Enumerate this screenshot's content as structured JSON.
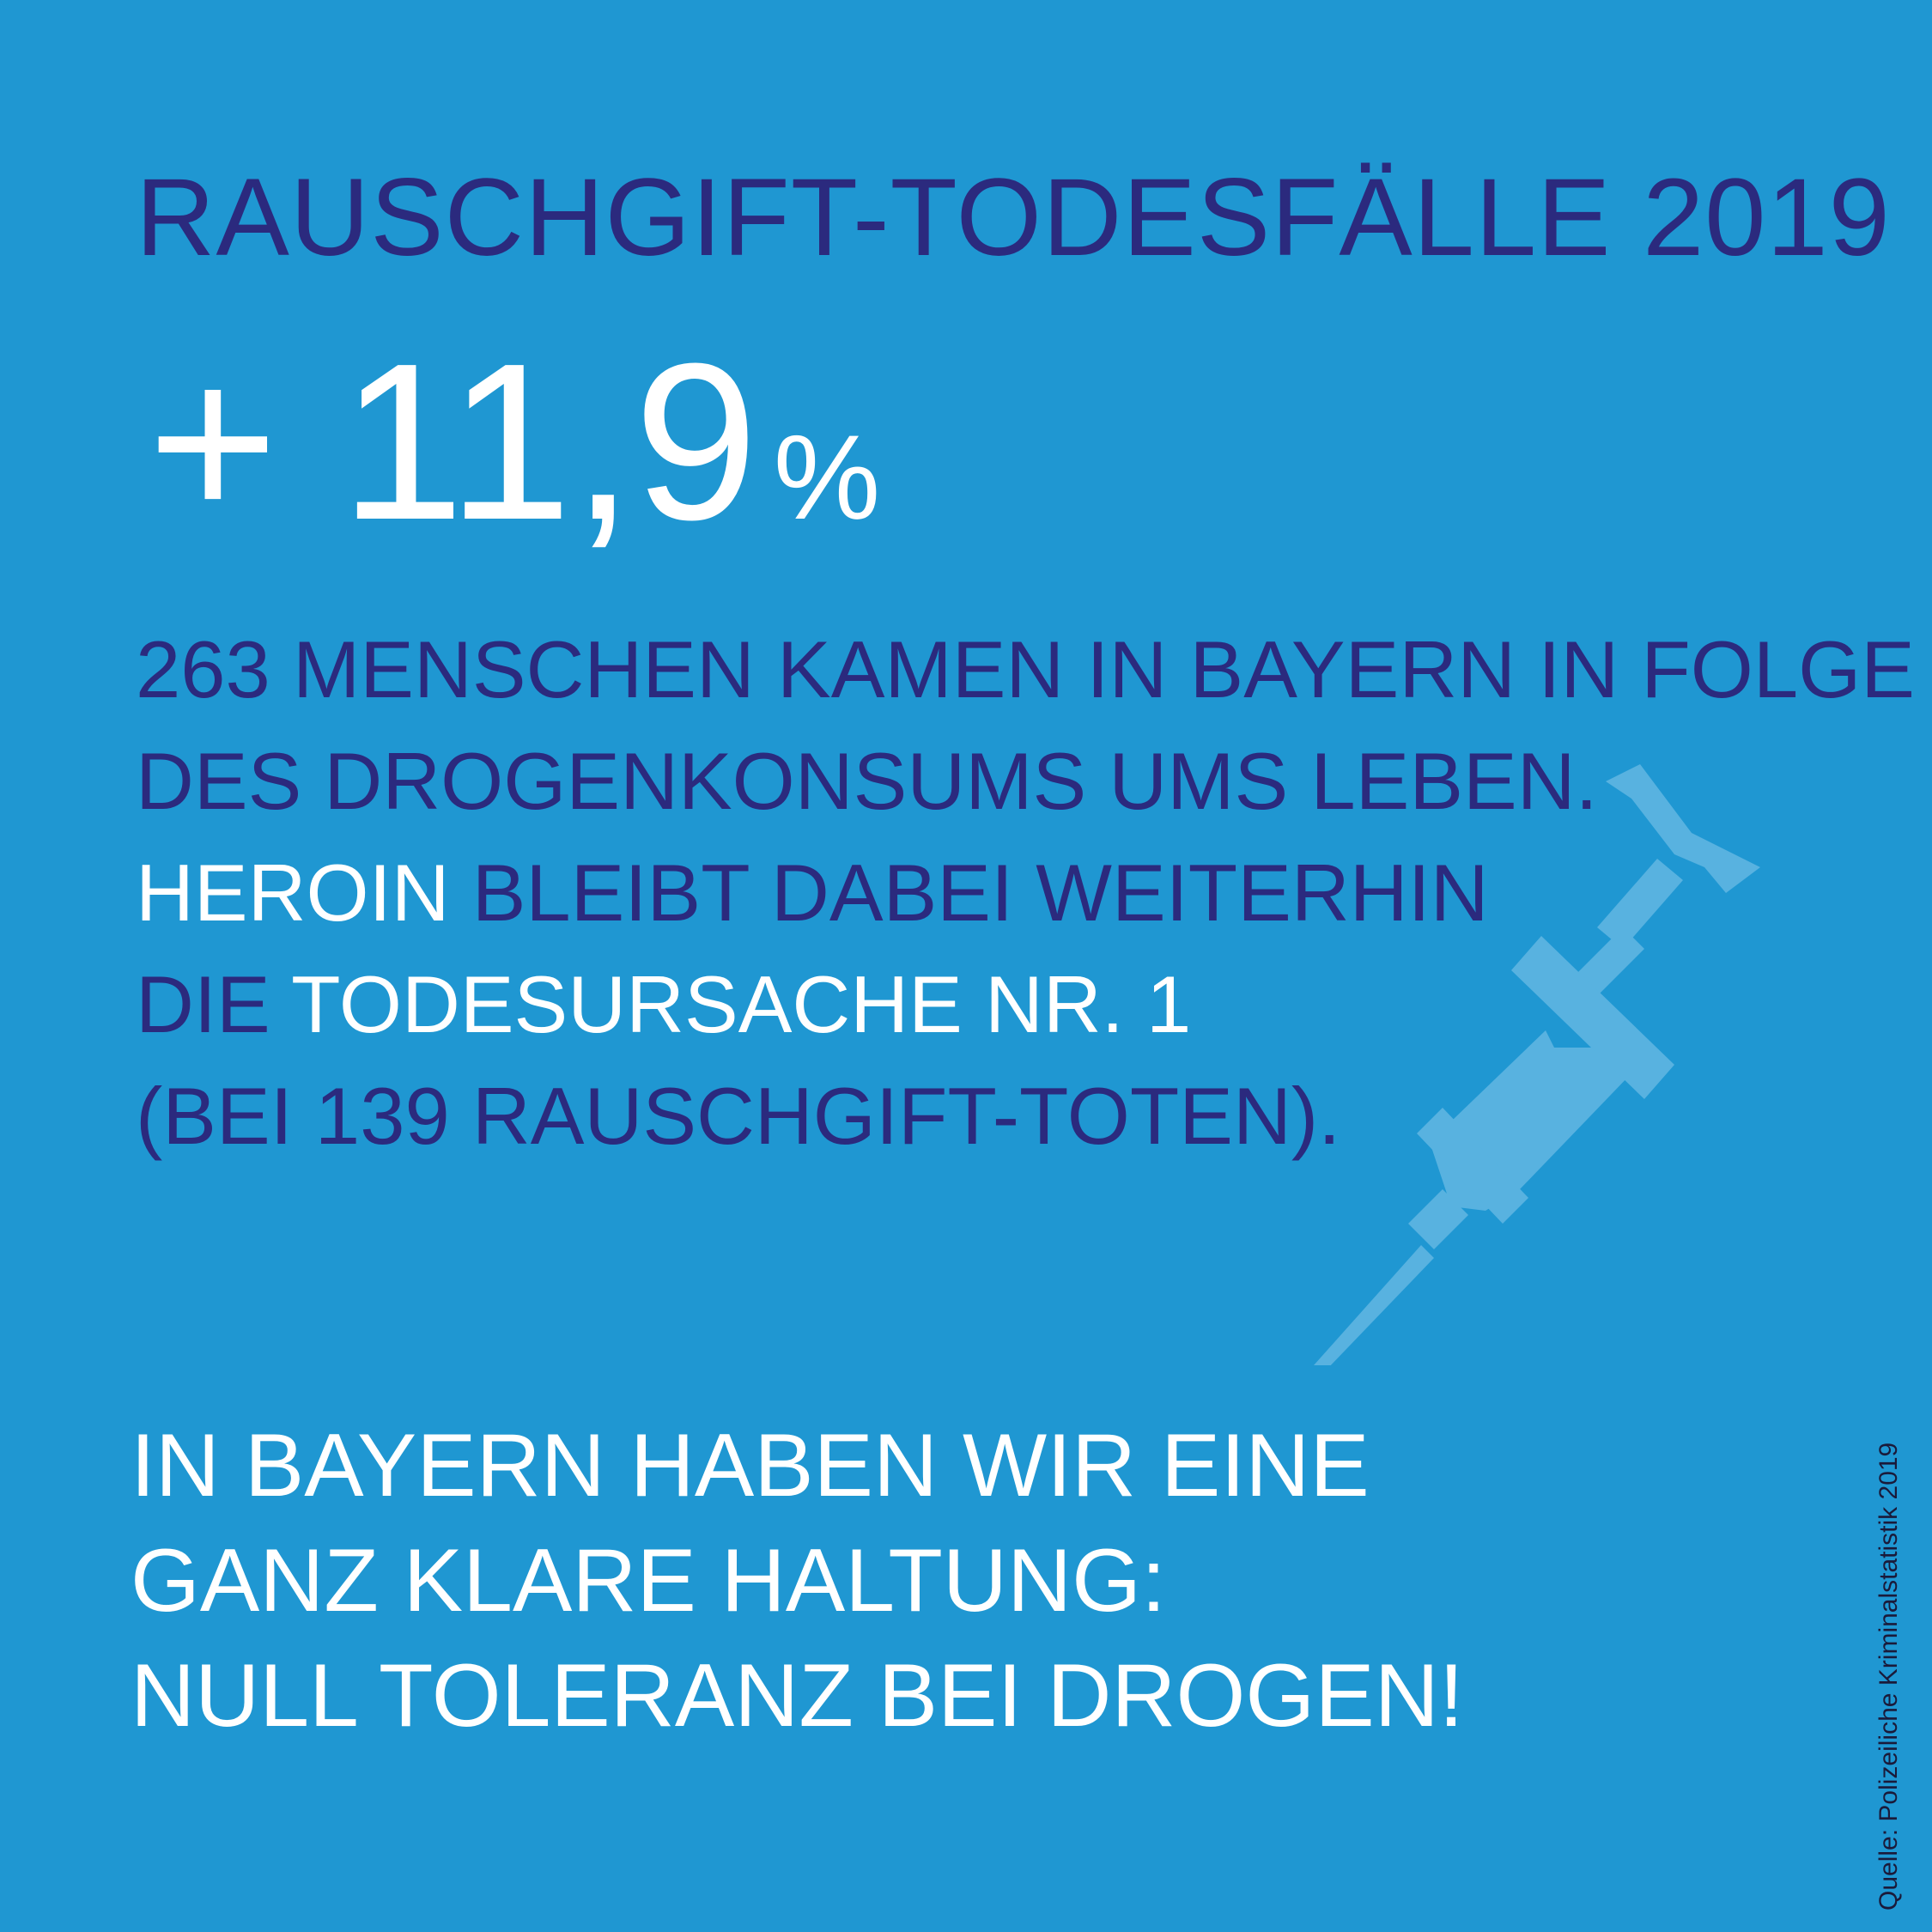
{
  "headline": "RAUSCHGIFT-TODESFÄLLE 2019",
  "stat": {
    "value": "+ 11,9",
    "unit": "%"
  },
  "body": {
    "line1": "263 MENSCHEN KAMEN IN BAYERN IN FOLGE",
    "line2": "DES DROGENKONSUMS UMS LEBEN.",
    "line3_white": "HEROIN",
    "line3_dark": " BLEIBT DABEI WEITERHIN",
    "line4_dark": "DIE",
    "line4_white": " TODESURSACHE NR. 1",
    "line5": "(BEI 139 RAUSCHGIFT-TOTEN)."
  },
  "closing": {
    "line1": "IN BAYERN HABEN WIR EINE",
    "line2": "GANZ KLARE HALTUNG:",
    "line3": "NULL TOLERANZ BEI DROGEN!"
  },
  "source": "Quelle: Polizeiliche Kriminalstatistik 2019",
  "icon": "syringe-icon",
  "colors": {
    "background": "#1f97d2",
    "dark_text": "#2b2a7e",
    "light_text": "#ffffff",
    "icon_tint": "#58b2e0"
  }
}
